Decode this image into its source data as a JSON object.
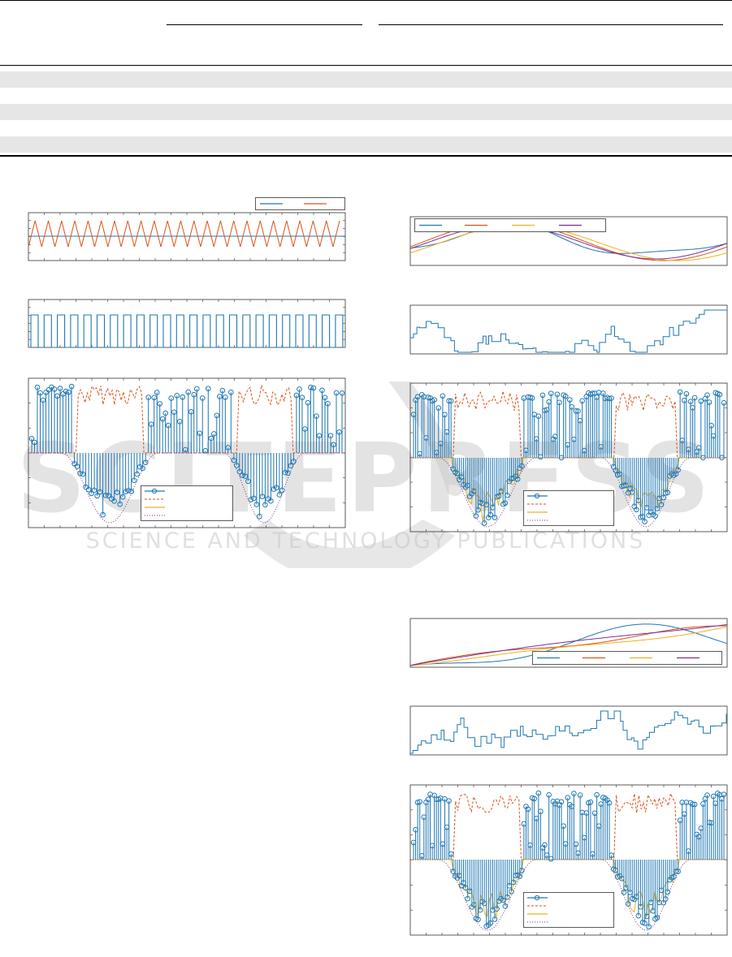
{
  "table": {
    "header_rules": 2,
    "shaded_rows": 3
  },
  "colors": {
    "blue": "#1f77b4",
    "orange": "#d95319",
    "yellow": "#edb120",
    "purple": "#7e2f8e",
    "shade": "#e6e6e6",
    "watermark": "#c8c8c8"
  },
  "watermark": {
    "text": "SCITEPRESS",
    "subtitle": "SCIENCE AND TECHNOLOGY PUBLICATIONS"
  },
  "figures": {
    "left": {
      "legend_top_entries": 2,
      "legend_bottom_entries": 4
    },
    "right_top": {
      "legend_top_entries": 4,
      "legend_bottom_entries": 4
    },
    "right_bottom": {
      "legend_top_entries": 4,
      "legend_bottom_entries": 4
    }
  }
}
